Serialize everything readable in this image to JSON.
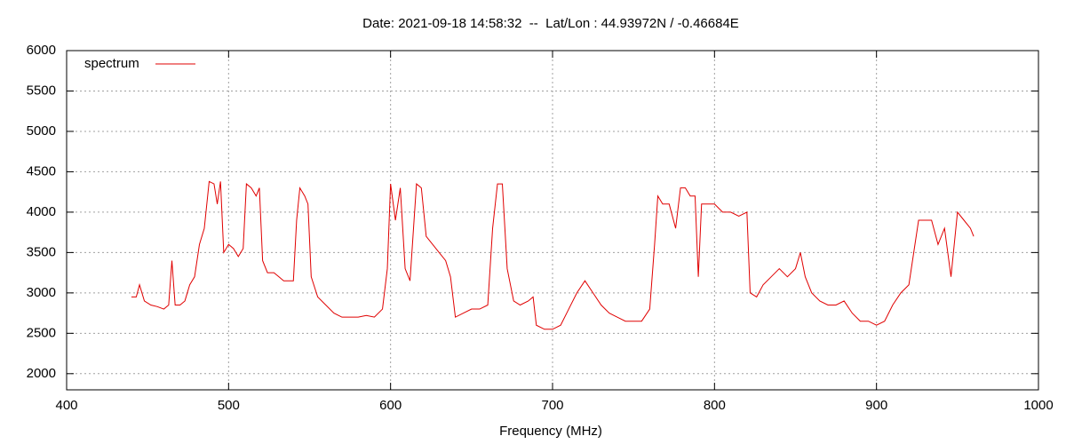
{
  "chart_data": {
    "type": "line",
    "title": "Date: 2021-09-18 14:58:32  --  Lat/Lon : 44.93972N / -0.46684E",
    "x_label": "Frequency (MHz)",
    "xlim": [
      400,
      1000
    ],
    "xticks": [
      400,
      500,
      600,
      700,
      800,
      900,
      1000
    ],
    "ylim": [
      1800,
      6000
    ],
    "yticks": [
      2000,
      2500,
      3000,
      3500,
      4000,
      4500,
      5000,
      5500,
      6000
    ],
    "grid": true,
    "legend": "upper left",
    "x": [
      440,
      443,
      445,
      448,
      452,
      456,
      460,
      463,
      465,
      467,
      470,
      473,
      476,
      479,
      482,
      485,
      488,
      491,
      493,
      495,
      497,
      500,
      503,
      506,
      509,
      511,
      514,
      517,
      519,
      521,
      524,
      528,
      531,
      534,
      537,
      540,
      542,
      544,
      547,
      549,
      551,
      555,
      560,
      565,
      570,
      575,
      580,
      585,
      590,
      595,
      598,
      600,
      603,
      606,
      609,
      612,
      616,
      619,
      622,
      626,
      630,
      634,
      637,
      640,
      645,
      650,
      655,
      660,
      663,
      666,
      669,
      672,
      676,
      680,
      685,
      688,
      690,
      695,
      700,
      705,
      710,
      715,
      720,
      725,
      730,
      735,
      740,
      745,
      750,
      755,
      760,
      763,
      765,
      768,
      772,
      776,
      779,
      782,
      785,
      788,
      790,
      792,
      796,
      800,
      805,
      810,
      815,
      820,
      822,
      826,
      830,
      835,
      840,
      845,
      850,
      853,
      856,
      860,
      865,
      870,
      875,
      880,
      885,
      890,
      895,
      900,
      905,
      910,
      915,
      920,
      923,
      926,
      930,
      934,
      938,
      942,
      946,
      950,
      954,
      958,
      960
    ],
    "series": [
      {
        "name": "spectrum",
        "color": "#e00000",
        "values": [
          2950,
          2950,
          3100,
          2900,
          2850,
          2830,
          2800,
          2850,
          3400,
          2850,
          2850,
          2900,
          3100,
          3200,
          3600,
          3800,
          4380,
          4350,
          4100,
          4380,
          3500,
          3600,
          3550,
          3450,
          3550,
          4350,
          4300,
          4200,
          4300,
          3400,
          3250,
          3250,
          3200,
          3150,
          3150,
          3150,
          3900,
          4300,
          4200,
          4100,
          3200,
          2950,
          2850,
          2750,
          2700,
          2700,
          2700,
          2720,
          2700,
          2800,
          3300,
          4350,
          3900,
          4300,
          3300,
          3150,
          4350,
          4300,
          3700,
          3600,
          3500,
          3400,
          3200,
          2700,
          2750,
          2800,
          2800,
          2850,
          3800,
          4350,
          4350,
          3300,
          2900,
          2850,
          2900,
          2950,
          2600,
          2550,
          2550,
          2600,
          2800,
          3000,
          3150,
          3000,
          2850,
          2750,
          2700,
          2650,
          2650,
          2650,
          2800,
          3600,
          4200,
          4100,
          4100,
          3800,
          4300,
          4300,
          4200,
          4200,
          3200,
          4100,
          4100,
          4100,
          4000,
          4000,
          3950,
          4000,
          3000,
          2950,
          3100,
          3200,
          3300,
          3200,
          3300,
          3500,
          3200,
          3000,
          2900,
          2850,
          2850,
          2900,
          2750,
          2650,
          2650,
          2600,
          2650,
          2850,
          3000,
          3100,
          3500,
          3900,
          3900,
          3900,
          3600,
          3800,
          3200,
          4000,
          3900,
          3800,
          3700
        ]
      }
    ]
  }
}
